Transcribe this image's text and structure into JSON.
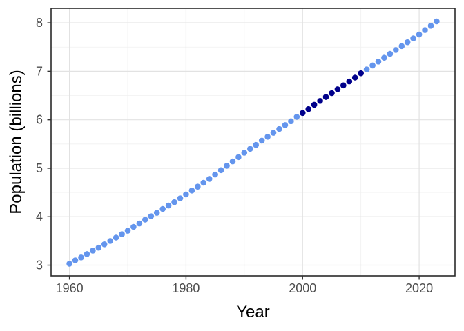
{
  "chart_data": {
    "type": "scatter",
    "title": "",
    "xlabel": "Year",
    "ylabel": "Population (billions)",
    "x": [
      1960,
      1961,
      1962,
      1963,
      1964,
      1965,
      1966,
      1967,
      1968,
      1969,
      1970,
      1971,
      1972,
      1973,
      1974,
      1975,
      1976,
      1977,
      1978,
      1979,
      1980,
      1981,
      1982,
      1983,
      1984,
      1985,
      1986,
      1987,
      1988,
      1989,
      1990,
      1991,
      1992,
      1993,
      1994,
      1995,
      1996,
      1997,
      1998,
      1999,
      2000,
      2001,
      2002,
      2003,
      2004,
      2005,
      2006,
      2007,
      2008,
      2009,
      2010,
      2011,
      2012,
      2013,
      2014,
      2015,
      2016,
      2017,
      2018,
      2019,
      2020,
      2021,
      2022,
      2023
    ],
    "y": [
      3.03,
      3.1,
      3.16,
      3.23,
      3.3,
      3.36,
      3.43,
      3.5,
      3.57,
      3.64,
      3.71,
      3.79,
      3.86,
      3.94,
      4.01,
      4.08,
      4.16,
      4.23,
      4.3,
      4.38,
      4.46,
      4.54,
      4.62,
      4.7,
      4.78,
      4.87,
      4.96,
      5.05,
      5.14,
      5.23,
      5.32,
      5.4,
      5.48,
      5.57,
      5.65,
      5.73,
      5.81,
      5.89,
      5.97,
      6.06,
      6.14,
      6.22,
      6.31,
      6.39,
      6.47,
      6.55,
      6.63,
      6.71,
      6.79,
      6.87,
      6.96,
      7.04,
      7.12,
      7.2,
      7.28,
      7.36,
      7.44,
      7.52,
      7.6,
      7.68,
      7.76,
      7.85,
      7.94,
      8.03
    ],
    "highlight_range": [
      2000,
      2010
    ],
    "x_ticks": [
      1960,
      1980,
      2000,
      2020
    ],
    "x_minor_ticks": [
      1970,
      1990,
      2010
    ],
    "y_ticks": [
      3,
      4,
      5,
      6,
      7,
      8
    ],
    "y_minor_ticks": [
      3.5,
      4.5,
      5.5,
      6.5,
      7.5
    ],
    "xlim": [
      1956.85,
      2026.15
    ],
    "ylim": [
      2.78,
      8.3
    ],
    "grid": true,
    "legend": false,
    "colors": {
      "point": "#6495ED",
      "highlight_point": "#00008B",
      "grid_major": "#E2E2E2",
      "grid_minor": "#F0F0F0",
      "panel_border": "#2A2A2A",
      "tick_mark": "#333333",
      "tick_label": "#4D4D4D",
      "axis_title": "#000000",
      "background": "#FFFFFF"
    }
  }
}
